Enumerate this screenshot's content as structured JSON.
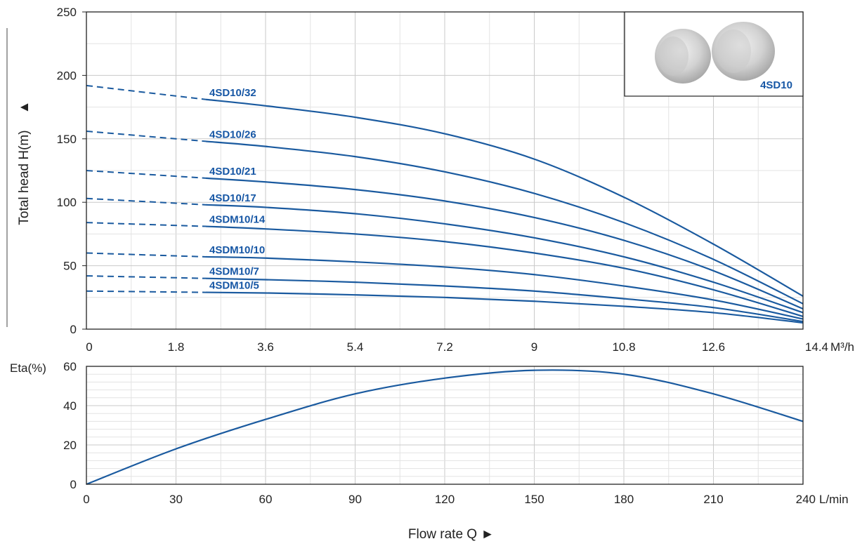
{
  "colors": {
    "curve": "#1a5a9f",
    "label": "#1757a5",
    "grid_major": "#c9c9c9",
    "grid_minor": "#e3e3e3",
    "frame": "#222222"
  },
  "chart_data": [
    {
      "type": "line",
      "name": "head-curves",
      "ylabel": "Total head H(m)",
      "ylabel_arrow": "▲",
      "x_unit": "M³/h",
      "x_ticks": [
        "0",
        "1.8",
        "3.6",
        "5.4",
        "7.2",
        "9",
        "10.8",
        "12.6",
        "14.4"
      ],
      "y_ticks": [
        "0",
        "50",
        "100",
        "150",
        "200",
        "250"
      ],
      "xlim": [
        0,
        14.4
      ],
      "ylim": [
        0,
        250
      ],
      "grid": true,
      "dashed_until_x": 2.4,
      "series": [
        {
          "name": "4SD10/32",
          "shutoff_head": 192,
          "x": [
            0,
            2.4,
            3.6,
            5.4,
            7.2,
            9,
            10.8,
            12.6,
            14.4
          ],
          "y": [
            192,
            181,
            176,
            167,
            154,
            134,
            104,
            67,
            26
          ]
        },
        {
          "name": "4SD10/26",
          "shutoff_head": 156,
          "x": [
            0,
            2.4,
            3.6,
            5.4,
            7.2,
            9,
            10.8,
            12.6,
            14.4
          ],
          "y": [
            156,
            148,
            144,
            136,
            124,
            107,
            84,
            55,
            20
          ]
        },
        {
          "name": "4SD10/21",
          "shutoff_head": 125,
          "x": [
            0,
            2.4,
            3.6,
            5.4,
            7.2,
            9,
            10.8,
            12.6,
            14.4
          ],
          "y": [
            125,
            119,
            116,
            110,
            101,
            88,
            70,
            46,
            16
          ]
        },
        {
          "name": "4SD10/17",
          "shutoff_head": 103,
          "x": [
            0,
            2.4,
            3.6,
            5.4,
            7.2,
            9,
            10.8,
            12.6,
            14.4
          ],
          "y": [
            103,
            98,
            96,
            91,
            83,
            72,
            57,
            37,
            13
          ]
        },
        {
          "name": "4SDM10/14",
          "shutoff_head": 84,
          "x": [
            0,
            2.4,
            3.6,
            5.4,
            7.2,
            9,
            10.8,
            12.6,
            14.4
          ],
          "y": [
            84,
            81,
            79,
            75,
            69,
            60,
            48,
            31,
            10
          ]
        },
        {
          "name": "4SDM10/10",
          "shutoff_head": 60,
          "x": [
            0,
            2.4,
            3.6,
            5.4,
            7.2,
            9,
            10.8,
            12.6,
            14.4
          ],
          "y": [
            60,
            57,
            56,
            53,
            49,
            43,
            34,
            23,
            8
          ]
        },
        {
          "name": "4SDM10/7",
          "shutoff_head": 42,
          "x": [
            0,
            2.4,
            3.6,
            5.4,
            7.2,
            9,
            10.8,
            12.6,
            14.4
          ],
          "y": [
            42,
            40,
            39,
            37,
            34,
            30,
            24,
            17,
            6
          ]
        },
        {
          "name": "4SDM10/5",
          "shutoff_head": 30,
          "x": [
            0,
            2.4,
            3.6,
            5.4,
            7.2,
            9,
            10.8,
            12.6,
            14.4
          ],
          "y": [
            30,
            29,
            28.5,
            27,
            25,
            22,
            18,
            13,
            5
          ]
        }
      ],
      "inset": {
        "label": "4SD10",
        "placement": "top-right"
      }
    },
    {
      "type": "line",
      "name": "efficiency-curve",
      "ylabel": "Eta(%)",
      "x_unit": "L/min",
      "x_ticks": [
        "0",
        "30",
        "60",
        "90",
        "120",
        "150",
        "180",
        "210",
        "240"
      ],
      "y_ticks": [
        "0",
        "20",
        "40",
        "60"
      ],
      "xlim": [
        0,
        240
      ],
      "ylim": [
        0,
        60
      ],
      "grid": true,
      "series": [
        {
          "x": [
            0,
            30,
            60,
            90,
            120,
            150,
            180,
            210,
            240
          ],
          "y": [
            0,
            18,
            33,
            46,
            54,
            58,
            56,
            46,
            32
          ]
        }
      ]
    }
  ],
  "footer": {
    "xlabel": "Flow rate Q",
    "xlabel_arrow": "►"
  }
}
